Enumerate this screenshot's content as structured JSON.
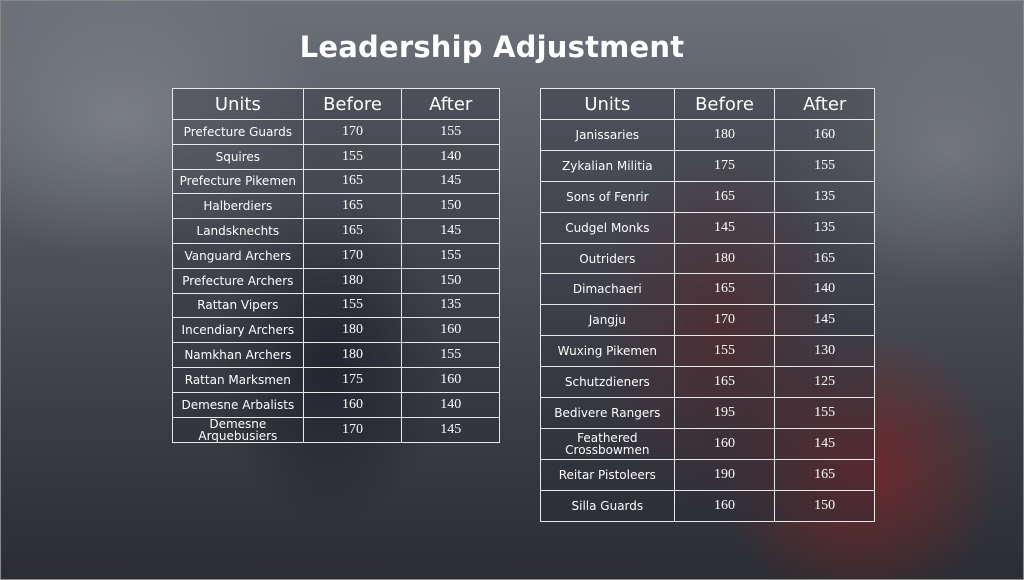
{
  "title": "Leadership Adjustment",
  "headers": {
    "units": "Units",
    "before": "Before",
    "after": "After"
  },
  "left_table": [
    {
      "unit": "Prefecture Guards",
      "before": "170",
      "after": "155"
    },
    {
      "unit": "Squires",
      "before": "155",
      "after": "140"
    },
    {
      "unit": "Prefecture Pikemen",
      "before": "165",
      "after": "145"
    },
    {
      "unit": "Halberdiers",
      "before": "165",
      "after": "150"
    },
    {
      "unit": "Landsknechts",
      "before": "165",
      "after": "145"
    },
    {
      "unit": "Vanguard Archers",
      "before": "170",
      "after": "155"
    },
    {
      "unit": "Prefecture Archers",
      "before": "180",
      "after": "150"
    },
    {
      "unit": "Rattan Vipers",
      "before": "155",
      "after": "135"
    },
    {
      "unit": "Incendiary Archers",
      "before": "180",
      "after": "160"
    },
    {
      "unit": "Namkhan Archers",
      "before": "180",
      "after": "155"
    },
    {
      "unit": "Rattan Marksmen",
      "before": "175",
      "after": "160"
    },
    {
      "unit": "Demesne Arbalists",
      "before": "160",
      "after": "140"
    },
    {
      "unit": "Demesne Arquebusiers",
      "before": "170",
      "after": "145"
    }
  ],
  "right_table": [
    {
      "unit": "Janissaries",
      "before": "180",
      "after": "160"
    },
    {
      "unit": "Zykalian Militia",
      "before": "175",
      "after": "155"
    },
    {
      "unit": "Sons of Fenrir",
      "before": "165",
      "after": "135"
    },
    {
      "unit": "Cudgel Monks",
      "before": "145",
      "after": "135"
    },
    {
      "unit": "Outriders",
      "before": "180",
      "after": "165"
    },
    {
      "unit": "Dimachaeri",
      "before": "165",
      "after": "140"
    },
    {
      "unit": "Jangju",
      "before": "170",
      "after": "145"
    },
    {
      "unit": "Wuxing Pikemen",
      "before": "155",
      "after": "130"
    },
    {
      "unit": "Schutzdieners",
      "before": "165",
      "after": "125"
    },
    {
      "unit": "Bedivere Rangers",
      "before": "195",
      "after": "155"
    },
    {
      "unit": "Feathered Crossbowmen",
      "before": "160",
      "after": "145"
    },
    {
      "unit": "Reitar Pistoleers",
      "before": "190",
      "after": "165"
    },
    {
      "unit": "Silla Guards",
      "before": "160",
      "after": "150"
    }
  ]
}
